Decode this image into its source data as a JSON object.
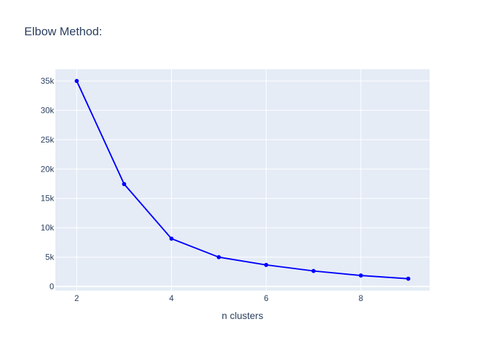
{
  "chart_data": {
    "type": "line",
    "title": "Elbow Method:",
    "xlabel": "n clusters",
    "ylabel": "",
    "x": [
      2,
      3,
      4,
      5,
      6,
      7,
      8,
      9
    ],
    "series": [
      {
        "values": [
          35000,
          17450,
          8150,
          5000,
          3680,
          2650,
          1880,
          1330
        ]
      }
    ],
    "xlim": [
      1.55,
      9.45
    ],
    "ylim": [
      -700,
      37000
    ],
    "xticks": [
      2,
      4,
      6,
      8
    ],
    "xtick_labels": [
      "2",
      "4",
      "6",
      "8"
    ],
    "yticks": [
      0,
      5000,
      10000,
      15000,
      20000,
      25000,
      30000,
      35000
    ],
    "ytick_labels": [
      "0",
      "5k",
      "10k",
      "15k",
      "20k",
      "25k",
      "30k",
      "35k"
    ],
    "grid": true,
    "legend": false,
    "colors": {
      "line": "#0000ff",
      "plot_bg": "#e5ecf6",
      "grid": "#ffffff",
      "text": "#2a3f5f",
      "paper_bg": "#ffffff"
    }
  }
}
